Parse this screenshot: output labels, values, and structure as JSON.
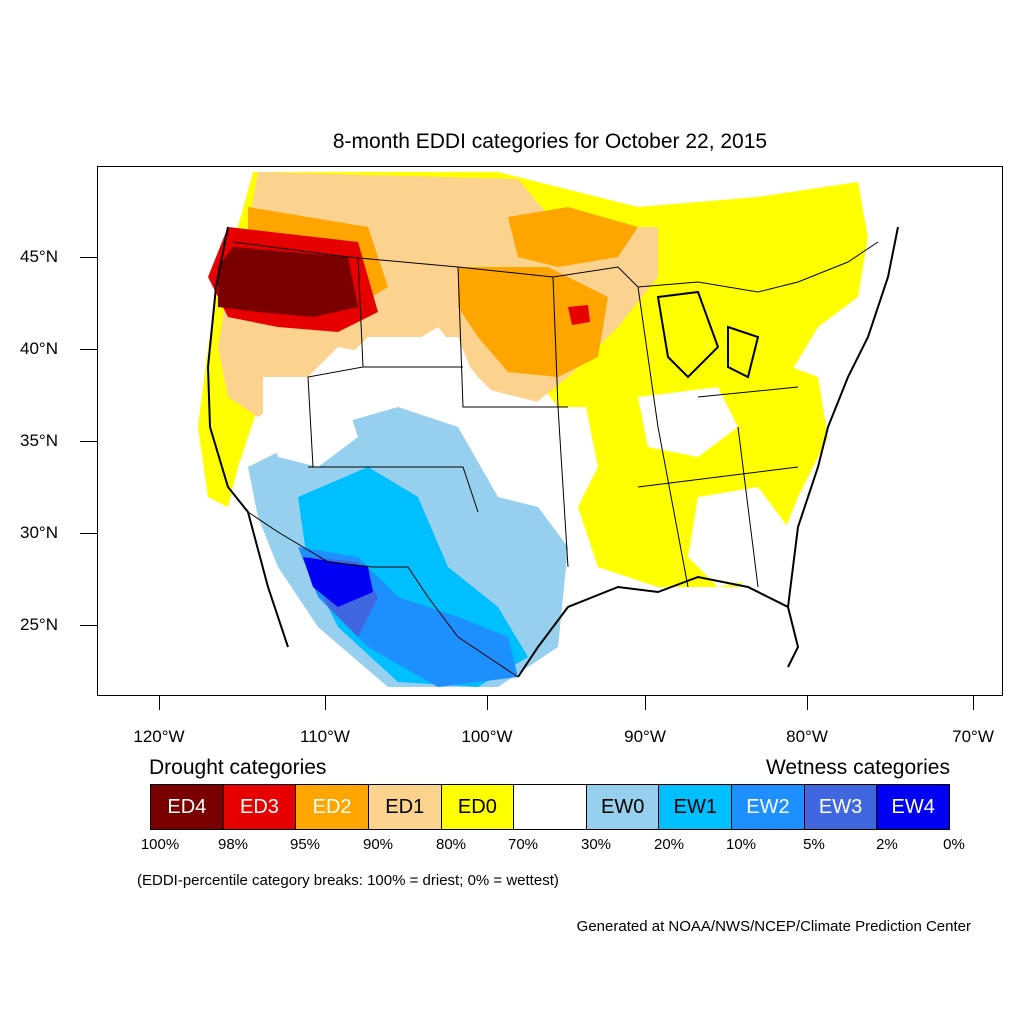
{
  "title": "8-month EDDI categories for October 22, 2015",
  "lat_labels": [
    "45°N",
    "40°N",
    "35°N",
    "30°N",
    "25°N"
  ],
  "lon_labels": [
    "120°W",
    "110°W",
    "100°W",
    "90°W",
    "80°W",
    "70°W"
  ],
  "legend": {
    "drought_title": "Drought categories",
    "wetness_title": "Wetness categories",
    "boxes": [
      {
        "label": "ED4",
        "color": "#7a0000",
        "text_color": "#ffffff"
      },
      {
        "label": "ED3",
        "color": "#e60000",
        "text_color": "#ffffff"
      },
      {
        "label": "ED2",
        "color": "#ffa500",
        "text_color": "#ffffff"
      },
      {
        "label": "ED1",
        "color": "#fcd38e",
        "text_color": "#000000"
      },
      {
        "label": "ED0",
        "color": "#ffff00",
        "text_color": "#000000"
      },
      {
        "label": "",
        "color": "#ffffff",
        "text_color": "#000000"
      },
      {
        "label": "EW0",
        "color": "#96d0ee",
        "text_color": "#000000"
      },
      {
        "label": "EW1",
        "color": "#00bfff",
        "text_color": "#000000"
      },
      {
        "label": "EW2",
        "color": "#1e8fff",
        "text_color": "#ffffff"
      },
      {
        "label": "EW3",
        "color": "#4066e0",
        "text_color": "#ffffff"
      },
      {
        "label": "EW4",
        "color": "#0000f5",
        "text_color": "#ffffff"
      }
    ],
    "percentiles": [
      "100%",
      "98%",
      "95%",
      "90%",
      "80%",
      "70%",
      "30%",
      "20%",
      "10%",
      "5%",
      "2%",
      "0%"
    ]
  },
  "note": "(EDDI-percentile category breaks: 100% = driest; 0% = wettest)",
  "credit": "Generated at NOAA/NWS/NCEP/Climate Prediction Center"
}
